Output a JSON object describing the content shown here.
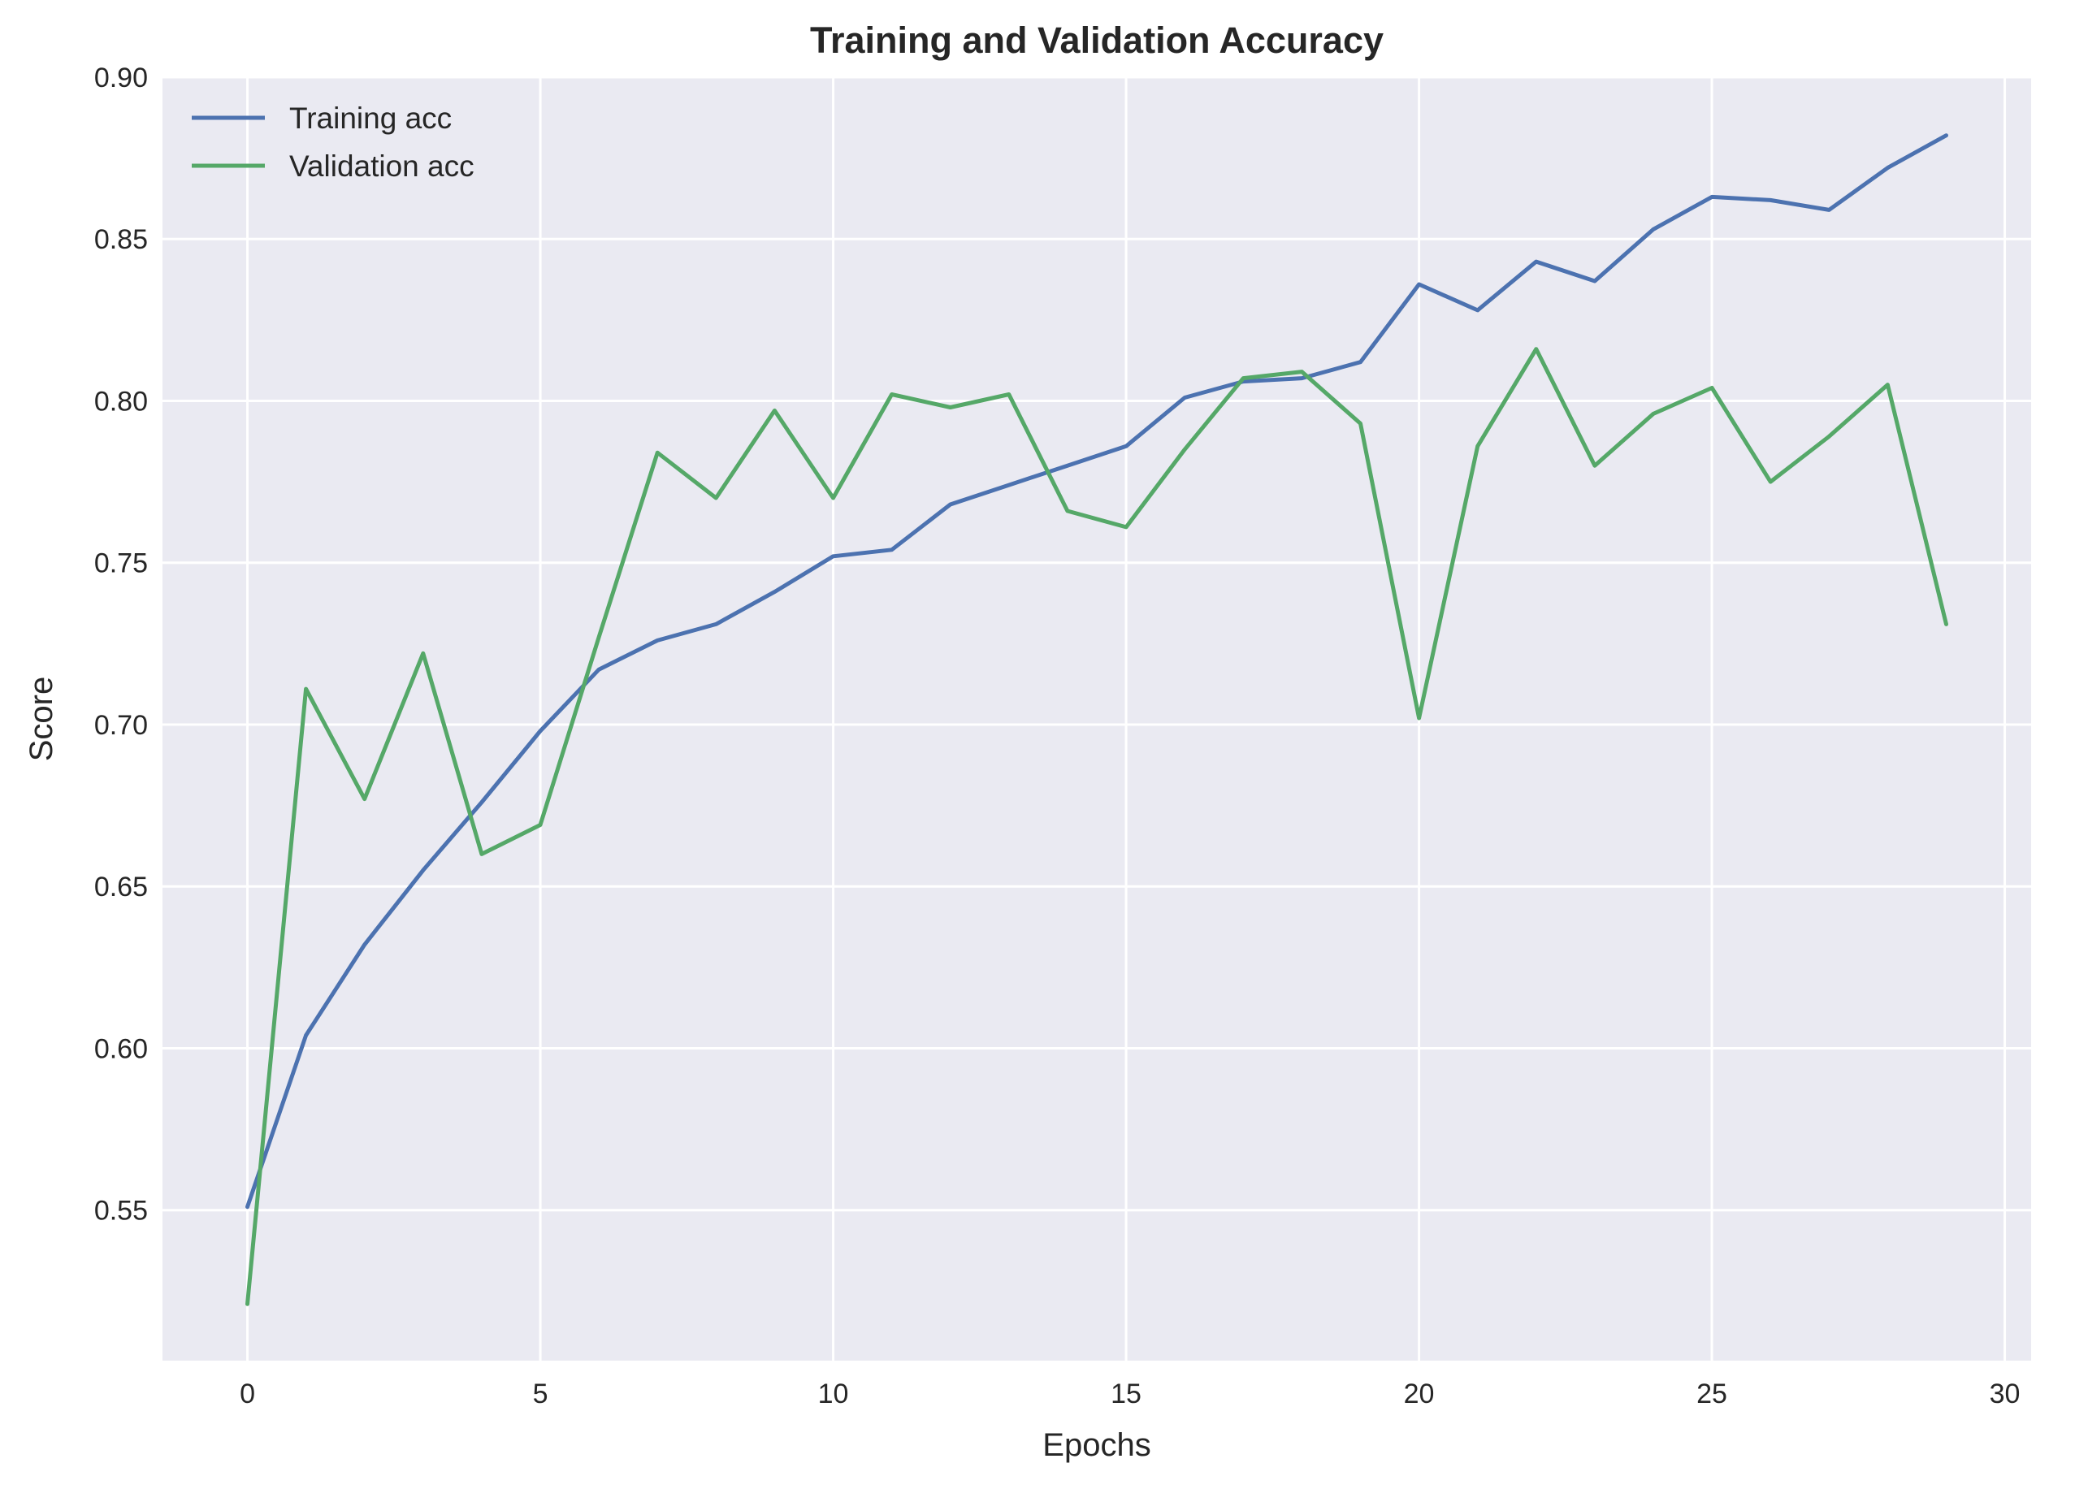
{
  "chart_data": {
    "type": "line",
    "title": "Training and Validation Accuracy",
    "xlabel": "Epochs",
    "ylabel": "Score",
    "xlim": [
      -1.45,
      30.45
    ],
    "ylim": [
      0.5035,
      0.9
    ],
    "xticks": [
      0,
      5,
      10,
      15,
      20,
      25,
      30
    ],
    "xtick_labels": [
      "0",
      "5",
      "10",
      "15",
      "20",
      "25",
      "30"
    ],
    "yticks": [
      0.55,
      0.6,
      0.65,
      0.7,
      0.75,
      0.8,
      0.85,
      0.9
    ],
    "ytick_labels": [
      "0.55",
      "0.60",
      "0.65",
      "0.70",
      "0.75",
      "0.80",
      "0.85",
      "0.90"
    ],
    "grid": true,
    "legend_position": "top-left",
    "background_color": "#eaeaf2",
    "x": [
      0,
      1,
      2,
      3,
      4,
      5,
      6,
      7,
      8,
      9,
      10,
      11,
      12,
      13,
      14,
      15,
      16,
      17,
      18,
      19,
      20,
      21,
      22,
      23,
      24,
      25,
      26,
      27,
      28,
      29
    ],
    "series": [
      {
        "name": "Training acc",
        "color": "#4c72b0",
        "values": [
          0.551,
          0.604,
          0.632,
          0.655,
          0.676,
          0.698,
          0.717,
          0.726,
          0.731,
          0.741,
          0.752,
          0.754,
          0.768,
          0.774,
          0.78,
          0.786,
          0.801,
          0.806,
          0.807,
          0.812,
          0.836,
          0.828,
          0.843,
          0.837,
          0.853,
          0.863,
          0.862,
          0.859,
          0.872,
          0.882
        ]
      },
      {
        "name": "Validation acc",
        "color": "#55a868",
        "values": [
          0.521,
          0.711,
          0.677,
          0.722,
          0.66,
          0.669,
          0.727,
          0.784,
          0.77,
          0.797,
          0.77,
          0.802,
          0.798,
          0.802,
          0.766,
          0.761,
          0.785,
          0.807,
          0.809,
          0.793,
          0.702,
          0.786,
          0.816,
          0.78,
          0.796,
          0.804,
          0.775,
          0.789,
          0.805,
          0.731
        ]
      }
    ]
  }
}
